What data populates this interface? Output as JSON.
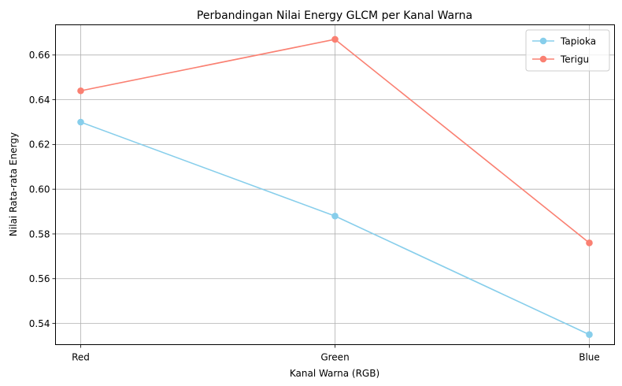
{
  "chart_data": {
    "type": "line",
    "title": "Perbandingan Nilai Energy GLCM per Kanal Warna",
    "xlabel": "Kanal Warna (RGB)",
    "ylabel": "Nilai Rata-rata Energy",
    "categories": [
      "Red",
      "Green",
      "Blue"
    ],
    "ylim": [
      0.5305,
      0.6735
    ],
    "yticks": [
      0.54,
      0.56,
      0.58,
      0.6,
      0.62,
      0.64,
      0.66
    ],
    "ytick_labels": [
      "0.54",
      "0.56",
      "0.58",
      "0.60",
      "0.62",
      "0.64",
      "0.66"
    ],
    "grid": true,
    "legend_position": "top-right",
    "series": [
      {
        "name": "Tapioka",
        "values": [
          0.63,
          0.588,
          0.535
        ],
        "color": "#87ceeb",
        "marker": "circle"
      },
      {
        "name": "Terigu",
        "values": [
          0.644,
          0.667,
          0.576
        ],
        "color": "#fa8072",
        "marker": "circle"
      }
    ]
  }
}
